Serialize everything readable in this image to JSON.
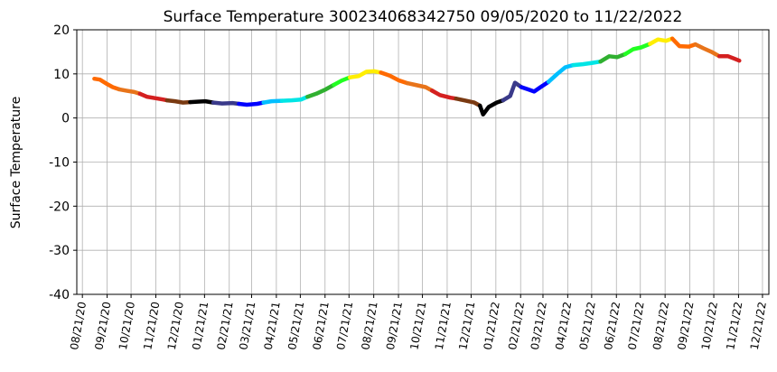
{
  "chart_data": {
    "type": "line",
    "title": "Surface Temperature 300234068342750  09/05/2020 to 11/22/2022",
    "xlabel": "",
    "ylabel": "Surface Temperature",
    "ylim": [
      -40,
      20
    ],
    "yticks": [
      -40,
      -30,
      -20,
      -10,
      0,
      10,
      20
    ],
    "xlim": [
      "2020-08-14",
      "2022-12-29"
    ],
    "xticks": [
      {
        "date": "2020-08-21",
        "label": "08/21/20"
      },
      {
        "date": "2020-09-21",
        "label": "09/21/20"
      },
      {
        "date": "2020-10-21",
        "label": "10/21/20"
      },
      {
        "date": "2020-11-21",
        "label": "11/21/20"
      },
      {
        "date": "2020-12-21",
        "label": "12/21/20"
      },
      {
        "date": "2021-01-21",
        "label": "01/21/21"
      },
      {
        "date": "2021-02-21",
        "label": "02/21/21"
      },
      {
        "date": "2021-03-21",
        "label": "03/21/21"
      },
      {
        "date": "2021-04-21",
        "label": "04/21/21"
      },
      {
        "date": "2021-05-21",
        "label": "05/21/21"
      },
      {
        "date": "2021-06-21",
        "label": "06/21/21"
      },
      {
        "date": "2021-07-21",
        "label": "07/21/21"
      },
      {
        "date": "2021-08-21",
        "label": "08/21/21"
      },
      {
        "date": "2021-09-21",
        "label": "09/21/21"
      },
      {
        "date": "2021-10-21",
        "label": "10/21/21"
      },
      {
        "date": "2021-11-21",
        "label": "11/21/21"
      },
      {
        "date": "2021-12-21",
        "label": "12/21/21"
      },
      {
        "date": "2022-01-21",
        "label": "01/21/22"
      },
      {
        "date": "2022-02-21",
        "label": "02/21/22"
      },
      {
        "date": "2022-03-21",
        "label": "03/21/22"
      },
      {
        "date": "2022-04-21",
        "label": "04/21/22"
      },
      {
        "date": "2022-05-21",
        "label": "05/21/22"
      },
      {
        "date": "2022-06-21",
        "label": "06/21/22"
      },
      {
        "date": "2022-07-21",
        "label": "07/21/22"
      },
      {
        "date": "2022-08-21",
        "label": "08/21/22"
      },
      {
        "date": "2022-09-21",
        "label": "09/21/22"
      },
      {
        "date": "2022-10-21",
        "label": "10/21/22"
      },
      {
        "date": "2022-11-21",
        "label": "11/21/22"
      },
      {
        "date": "2022-12-21",
        "label": "12/21/22"
      }
    ],
    "grid": true,
    "legend": "none",
    "color_cycle": "monthly (red, orange, brown, black, navy, blue, cyan, green, yellow)",
    "series": [
      {
        "color": "#ff6a00",
        "points": [
          [
            "2020-09-05",
            8.9
          ],
          [
            "2020-09-12",
            8.7
          ],
          [
            "2020-09-20",
            7.8
          ],
          [
            "2020-09-28",
            7.0
          ],
          [
            "2020-10-06",
            6.5
          ]
        ]
      },
      {
        "color": "#e8741a",
        "points": [
          [
            "2020-10-06",
            6.5
          ],
          [
            "2020-10-15",
            6.2
          ],
          [
            "2020-10-25",
            5.9
          ],
          [
            "2020-11-01",
            5.5
          ]
        ]
      },
      {
        "color": "#d42020",
        "points": [
          [
            "2020-11-01",
            5.5
          ],
          [
            "2020-11-10",
            4.8
          ],
          [
            "2020-11-20",
            4.5
          ],
          [
            "2020-11-30",
            4.2
          ],
          [
            "2020-12-05",
            4.0
          ]
        ]
      },
      {
        "color": "#7a3a12",
        "points": [
          [
            "2020-12-05",
            4.0
          ],
          [
            "2020-12-15",
            3.8
          ],
          [
            "2020-12-25",
            3.5
          ],
          [
            "2021-01-03",
            3.6
          ]
        ]
      },
      {
        "color": "#000000",
        "points": [
          [
            "2021-01-03",
            3.6
          ],
          [
            "2021-01-12",
            3.7
          ],
          [
            "2021-01-22",
            3.8
          ],
          [
            "2021-02-01",
            3.5
          ]
        ]
      },
      {
        "color": "#3a3a8a",
        "points": [
          [
            "2021-02-01",
            3.5
          ],
          [
            "2021-02-12",
            3.3
          ],
          [
            "2021-02-25",
            3.4
          ],
          [
            "2021-03-05",
            3.2
          ]
        ]
      },
      {
        "color": "#0000ff",
        "points": [
          [
            "2021-03-05",
            3.2
          ],
          [
            "2021-03-15",
            3.0
          ],
          [
            "2021-03-28",
            3.2
          ],
          [
            "2021-04-05",
            3.5
          ]
        ]
      },
      {
        "color": "#00bfff",
        "points": [
          [
            "2021-04-05",
            3.5
          ],
          [
            "2021-04-15",
            3.8
          ],
          [
            "2021-04-28",
            3.9
          ]
        ]
      },
      {
        "color": "#00e5e5",
        "points": [
          [
            "2021-04-28",
            3.9
          ],
          [
            "2021-05-10",
            4.0
          ],
          [
            "2021-05-22",
            4.2
          ],
          [
            "2021-05-30",
            4.8
          ]
        ]
      },
      {
        "color": "#30b030",
        "points": [
          [
            "2021-05-30",
            4.8
          ],
          [
            "2021-06-10",
            5.5
          ],
          [
            "2021-06-22",
            6.5
          ],
          [
            "2021-07-02",
            7.5
          ]
        ]
      },
      {
        "color": "#22ff22",
        "points": [
          [
            "2021-07-02",
            7.5
          ],
          [
            "2021-07-12",
            8.5
          ],
          [
            "2021-07-22",
            9.2
          ]
        ]
      },
      {
        "color": "#ffee00",
        "points": [
          [
            "2021-07-22",
            9.2
          ],
          [
            "2021-08-02",
            9.5
          ],
          [
            "2021-08-12",
            10.5
          ],
          [
            "2021-08-22",
            10.6
          ],
          [
            "2021-08-30",
            10.3
          ]
        ]
      },
      {
        "color": "#ff6a00",
        "points": [
          [
            "2021-08-30",
            10.3
          ],
          [
            "2021-09-10",
            9.6
          ],
          [
            "2021-09-22",
            8.5
          ],
          [
            "2021-10-02",
            7.9
          ]
        ]
      },
      {
        "color": "#e8741a",
        "points": [
          [
            "2021-10-02",
            7.9
          ],
          [
            "2021-10-12",
            7.5
          ],
          [
            "2021-10-25",
            7.0
          ],
          [
            "2021-11-02",
            6.2
          ]
        ]
      },
      {
        "color": "#d42020",
        "points": [
          [
            "2021-11-02",
            6.2
          ],
          [
            "2021-11-12",
            5.2
          ],
          [
            "2021-11-25",
            4.6
          ],
          [
            "2021-12-02",
            4.4
          ]
        ]
      },
      {
        "color": "#7a3a12",
        "points": [
          [
            "2021-12-02",
            4.4
          ],
          [
            "2021-12-12",
            4.0
          ],
          [
            "2021-12-25",
            3.5
          ],
          [
            "2022-01-01",
            2.8
          ]
        ]
      },
      {
        "color": "#000000",
        "points": [
          [
            "2022-01-01",
            2.8
          ],
          [
            "2022-01-05",
            0.8
          ],
          [
            "2022-01-12",
            2.5
          ],
          [
            "2022-01-22",
            3.5
          ],
          [
            "2022-01-30",
            4.0
          ]
        ]
      },
      {
        "color": "#3a3a8a",
        "points": [
          [
            "2022-01-30",
            4.0
          ],
          [
            "2022-02-08",
            5.0
          ],
          [
            "2022-02-14",
            8.0
          ],
          [
            "2022-02-22",
            7.0
          ]
        ]
      },
      {
        "color": "#0000ff",
        "points": [
          [
            "2022-02-22",
            7.0
          ],
          [
            "2022-03-02",
            6.5
          ],
          [
            "2022-03-10",
            6.0
          ],
          [
            "2022-03-18",
            7.0
          ],
          [
            "2022-03-28",
            8.2
          ]
        ]
      },
      {
        "color": "#00bfff",
        "points": [
          [
            "2022-03-28",
            8.2
          ],
          [
            "2022-04-08",
            10.0
          ],
          [
            "2022-04-18",
            11.5
          ],
          [
            "2022-04-28",
            12.0
          ]
        ]
      },
      {
        "color": "#00e5e5",
        "points": [
          [
            "2022-04-28",
            12.0
          ],
          [
            "2022-05-10",
            12.2
          ],
          [
            "2022-05-22",
            12.5
          ],
          [
            "2022-06-01",
            12.8
          ]
        ]
      },
      {
        "color": "#30b030",
        "points": [
          [
            "2022-06-01",
            12.8
          ],
          [
            "2022-06-12",
            14.0
          ],
          [
            "2022-06-22",
            13.8
          ],
          [
            "2022-07-02",
            14.5
          ]
        ]
      },
      {
        "color": "#22ff22",
        "points": [
          [
            "2022-07-02",
            14.5
          ],
          [
            "2022-07-12",
            15.6
          ],
          [
            "2022-07-22",
            16.0
          ],
          [
            "2022-08-02",
            16.8
          ]
        ]
      },
      {
        "color": "#ffee00",
        "points": [
          [
            "2022-08-02",
            16.8
          ],
          [
            "2022-08-12",
            17.8
          ],
          [
            "2022-08-22",
            17.5
          ],
          [
            "2022-08-30",
            18.0
          ]
        ]
      },
      {
        "color": "#ff6a00",
        "points": [
          [
            "2022-08-30",
            18.0
          ],
          [
            "2022-09-08",
            16.3
          ],
          [
            "2022-09-20",
            16.2
          ],
          [
            "2022-09-28",
            16.7
          ]
        ]
      },
      {
        "color": "#e8741a",
        "points": [
          [
            "2022-09-28",
            16.7
          ],
          [
            "2022-10-08",
            15.8
          ],
          [
            "2022-10-18",
            15.0
          ],
          [
            "2022-10-28",
            14.0
          ]
        ]
      },
      {
        "color": "#d42020",
        "points": [
          [
            "2022-10-28",
            14.0
          ],
          [
            "2022-11-08",
            14.0
          ],
          [
            "2022-11-15",
            13.5
          ],
          [
            "2022-11-22",
            13.0
          ]
        ]
      }
    ]
  }
}
